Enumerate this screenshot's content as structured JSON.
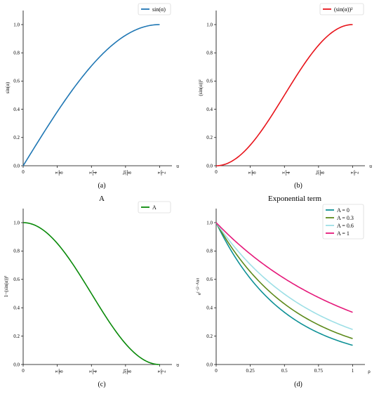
{
  "header": {
    "left_title": "A",
    "right_title": "Exponential term"
  },
  "chart_data": [
    {
      "id": "a",
      "type": "line",
      "caption": "(a)",
      "title": "",
      "xlabel": "α",
      "ylabel": "sin(α)",
      "xlim": [
        0,
        1.5708
      ],
      "ylim": [
        0,
        1.0
      ],
      "xticks": [
        {
          "value": 0,
          "num": "0",
          "den": ""
        },
        {
          "value": 0.3927,
          "num": "π",
          "den": "8"
        },
        {
          "value": 0.7854,
          "num": "π",
          "den": "4"
        },
        {
          "value": 1.1781,
          "num": "3π",
          "den": "8"
        },
        {
          "value": 1.5708,
          "num": "π",
          "den": "2"
        }
      ],
      "yticks": [
        "0.0",
        "0.2",
        "0.4",
        "0.6",
        "0.8",
        "1.0"
      ],
      "grid": false,
      "legend_position": "top-right",
      "series": [
        {
          "name": "sin(α)",
          "color": "#1f77b4",
          "func": "sin",
          "x": [
            0,
            0.1963,
            0.3927,
            0.589,
            0.7854,
            0.9817,
            1.1781,
            1.3744,
            1.5708
          ],
          "y": [
            0,
            0.195,
            0.383,
            0.556,
            0.707,
            0.831,
            0.924,
            0.981,
            1.0
          ]
        }
      ]
    },
    {
      "id": "b",
      "type": "line",
      "caption": "(b)",
      "title": "",
      "xlabel": "α",
      "ylabel": "(sin(α))²",
      "xlim": [
        0,
        1.5708
      ],
      "ylim": [
        0,
        1.0
      ],
      "xticks": [
        {
          "value": 0,
          "num": "0",
          "den": ""
        },
        {
          "value": 0.3927,
          "num": "π",
          "den": "8"
        },
        {
          "value": 0.7854,
          "num": "π",
          "den": "4"
        },
        {
          "value": 1.1781,
          "num": "3π",
          "den": "8"
        },
        {
          "value": 1.5708,
          "num": "π",
          "den": "2"
        }
      ],
      "yticks": [
        "0.0",
        "0.2",
        "0.4",
        "0.6",
        "0.8",
        "1.0"
      ],
      "grid": false,
      "legend_position": "top-right",
      "series": [
        {
          "name": "(sin(α))²",
          "color": "#e8141b",
          "func": "sin2",
          "x": [
            0,
            0.1963,
            0.3927,
            0.589,
            0.7854,
            0.9817,
            1.1781,
            1.3744,
            1.5708
          ],
          "y": [
            0,
            0.038,
            0.146,
            0.309,
            0.5,
            0.691,
            0.854,
            0.962,
            1.0
          ]
        }
      ]
    },
    {
      "id": "c",
      "type": "line",
      "caption": "(c)",
      "title": "",
      "xlabel": "α",
      "ylabel": "1−(sin(α))²",
      "xlim": [
        0,
        1.5708
      ],
      "ylim": [
        0,
        1.0
      ],
      "xticks": [
        {
          "value": 0,
          "num": "0",
          "den": ""
        },
        {
          "value": 0.3927,
          "num": "π",
          "den": "8"
        },
        {
          "value": 0.7854,
          "num": "π",
          "den": "4"
        },
        {
          "value": 1.1781,
          "num": "3π",
          "den": "8"
        },
        {
          "value": 1.5708,
          "num": "π",
          "den": "2"
        }
      ],
      "yticks": [
        "0.0",
        "0.2",
        "0.4",
        "0.6",
        "0.8",
        "1.0"
      ],
      "grid": false,
      "legend_position": "top-right",
      "series": [
        {
          "name": "A",
          "color": "#0a8a0a",
          "func": "cos2",
          "x": [
            0,
            0.1963,
            0.3927,
            0.589,
            0.7854,
            0.9817,
            1.1781,
            1.3744,
            1.5708
          ],
          "y": [
            1.0,
            0.962,
            0.854,
            0.691,
            0.5,
            0.309,
            0.146,
            0.038,
            0
          ]
        }
      ]
    },
    {
      "id": "d",
      "type": "line",
      "caption": "(d)",
      "title": "",
      "xlabel": "ρ",
      "ylabel": "e^(−(2−A)ρ)",
      "ylabel_base": "e",
      "ylabel_exp": "(−(2−A)ρ)",
      "xlim": [
        0,
        1.0
      ],
      "ylim": [
        0,
        1.0
      ],
      "xticks": [
        {
          "value": 0,
          "num": "0",
          "den": ""
        },
        {
          "value": 0.25,
          "num": "0.25",
          "den": ""
        },
        {
          "value": 0.5,
          "num": "0.5",
          "den": ""
        },
        {
          "value": 0.75,
          "num": "0.75",
          "den": ""
        },
        {
          "value": 1.0,
          "num": "1",
          "den": ""
        }
      ],
      "yticks": [
        "0.0",
        "0.2",
        "0.4",
        "0.6",
        "0.8",
        "1.0"
      ],
      "grid": false,
      "legend_position": "top-right",
      "series": [
        {
          "name": "A = 0",
          "color": "#0e9196",
          "func": "exp",
          "A": 0,
          "x": [
            0,
            0.25,
            0.5,
            0.75,
            1.0
          ],
          "y": [
            1.0,
            0.607,
            0.368,
            0.223,
            0.135
          ]
        },
        {
          "name": "A = 0.3",
          "color": "#5d8a1b",
          "func": "exp",
          "A": 0.3,
          "x": [
            0,
            0.25,
            0.5,
            0.75,
            1.0
          ],
          "y": [
            1.0,
            0.654,
            0.427,
            0.279,
            0.183
          ]
        },
        {
          "name": "A = 0.6",
          "color": "#9ddfe6",
          "func": "exp",
          "A": 0.6,
          "x": [
            0,
            0.25,
            0.5,
            0.75,
            1.0
          ],
          "y": [
            1.0,
            0.705,
            0.497,
            0.35,
            0.247
          ]
        },
        {
          "name": "A = 1",
          "color": "#e5197a",
          "func": "exp",
          "A": 1,
          "x": [
            0,
            0.25,
            0.5,
            0.75,
            1.0
          ],
          "y": [
            1.0,
            0.779,
            0.607,
            0.472,
            0.368
          ]
        }
      ]
    }
  ]
}
